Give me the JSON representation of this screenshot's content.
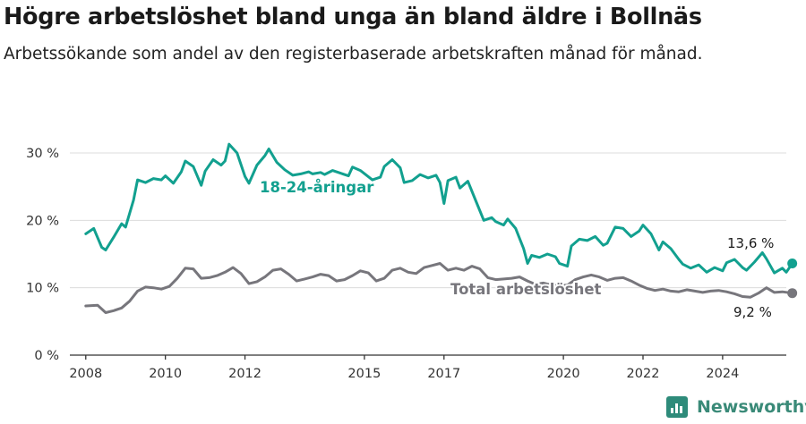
{
  "title": "Högre arbetslöshet bland unga än bland äldre i Bollnäs",
  "subtitle": "Arbetssökande som andel av den registerbaserade arbetskraften månad för månad.",
  "brand": "Newsworthy",
  "colors": {
    "youth": "#12a08f",
    "total": "#77767c",
    "grid": "#dcdcdc",
    "axis": "#333333",
    "brand": "#3a8a78"
  },
  "chart_data": {
    "type": "line",
    "title": "Högre arbetslöshet bland unga än bland äldre i Bollnäs",
    "subtitle": "Arbetssökande som andel av den registerbaserade arbetskraften månad för månad.",
    "x_ticks": [
      2008,
      2010,
      2012,
      2015,
      2017,
      2020,
      2022,
      2024
    ],
    "xlim": [
      2007.6,
      2025.6
    ],
    "ylim": [
      0,
      30
    ],
    "y_ticks": [
      0,
      10,
      20,
      30
    ],
    "y_tick_labels": [
      "0 %",
      "10 %",
      "20 %",
      "30 %"
    ],
    "grid": true,
    "series": [
      {
        "name": "18-24-åringar",
        "label": "18-24-åringar",
        "end_label": "13,6 %",
        "color": "#12a08f",
        "points": [
          [
            2008.0,
            18.0
          ],
          [
            2008.2,
            18.8
          ],
          [
            2008.4,
            16.0
          ],
          [
            2008.5,
            15.6
          ],
          [
            2008.7,
            17.5
          ],
          [
            2008.9,
            19.5
          ],
          [
            2009.0,
            19.0
          ],
          [
            2009.2,
            23.0
          ],
          [
            2009.3,
            26.0
          ],
          [
            2009.5,
            25.6
          ],
          [
            2009.7,
            26.2
          ],
          [
            2009.9,
            26.0
          ],
          [
            2010.0,
            26.6
          ],
          [
            2010.2,
            25.5
          ],
          [
            2010.4,
            27.2
          ],
          [
            2010.5,
            28.8
          ],
          [
            2010.7,
            28.0
          ],
          [
            2010.9,
            25.2
          ],
          [
            2011.0,
            27.3
          ],
          [
            2011.2,
            29.0
          ],
          [
            2011.4,
            28.2
          ],
          [
            2011.5,
            28.8
          ],
          [
            2011.6,
            31.3
          ],
          [
            2011.8,
            30.0
          ],
          [
            2012.0,
            26.5
          ],
          [
            2012.1,
            25.5
          ],
          [
            2012.3,
            28.2
          ],
          [
            2012.5,
            29.6
          ],
          [
            2012.6,
            30.6
          ],
          [
            2012.8,
            28.6
          ],
          [
            2013.0,
            27.5
          ],
          [
            2013.2,
            26.7
          ],
          [
            2013.4,
            26.9
          ],
          [
            2013.6,
            27.2
          ],
          [
            2013.7,
            26.9
          ],
          [
            2013.9,
            27.1
          ],
          [
            2014.0,
            26.8
          ],
          [
            2014.2,
            27.4
          ],
          [
            2014.4,
            27.0
          ],
          [
            2014.6,
            26.6
          ],
          [
            2014.7,
            27.9
          ],
          [
            2014.9,
            27.4
          ],
          [
            2015.2,
            26.0
          ],
          [
            2015.4,
            26.4
          ],
          [
            2015.5,
            28.0
          ],
          [
            2015.7,
            29.0
          ],
          [
            2015.9,
            27.8
          ],
          [
            2016.0,
            25.6
          ],
          [
            2016.2,
            25.9
          ],
          [
            2016.4,
            26.8
          ],
          [
            2016.6,
            26.3
          ],
          [
            2016.8,
            26.7
          ],
          [
            2016.9,
            25.6
          ],
          [
            2017.0,
            22.5
          ],
          [
            2017.1,
            25.9
          ],
          [
            2017.3,
            26.4
          ],
          [
            2017.4,
            24.8
          ],
          [
            2017.6,
            25.8
          ],
          [
            2017.8,
            22.9
          ],
          [
            2018.0,
            20.0
          ],
          [
            2018.2,
            20.4
          ],
          [
            2018.3,
            19.8
          ],
          [
            2018.5,
            19.3
          ],
          [
            2018.6,
            20.2
          ],
          [
            2018.8,
            18.8
          ],
          [
            2019.0,
            15.8
          ],
          [
            2019.1,
            13.6
          ],
          [
            2019.2,
            14.8
          ],
          [
            2019.4,
            14.5
          ],
          [
            2019.6,
            15.0
          ],
          [
            2019.8,
            14.6
          ],
          [
            2019.9,
            13.6
          ],
          [
            2020.1,
            13.2
          ],
          [
            2020.2,
            16.2
          ],
          [
            2020.4,
            17.2
          ],
          [
            2020.6,
            17.0
          ],
          [
            2020.8,
            17.6
          ],
          [
            2021.0,
            16.3
          ],
          [
            2021.1,
            16.6
          ],
          [
            2021.3,
            19.0
          ],
          [
            2021.5,
            18.8
          ],
          [
            2021.7,
            17.6
          ],
          [
            2021.9,
            18.4
          ],
          [
            2022.0,
            19.3
          ],
          [
            2022.2,
            18.0
          ],
          [
            2022.4,
            15.6
          ],
          [
            2022.5,
            16.8
          ],
          [
            2022.7,
            15.8
          ],
          [
            2022.9,
            14.2
          ],
          [
            2023.0,
            13.5
          ],
          [
            2023.2,
            12.9
          ],
          [
            2023.4,
            13.4
          ],
          [
            2023.6,
            12.3
          ],
          [
            2023.8,
            13.0
          ],
          [
            2024.0,
            12.5
          ],
          [
            2024.1,
            13.7
          ],
          [
            2024.3,
            14.2
          ],
          [
            2024.5,
            13.0
          ],
          [
            2024.6,
            12.6
          ],
          [
            2024.8,
            13.8
          ],
          [
            2025.0,
            15.2
          ],
          [
            2025.1,
            14.3
          ],
          [
            2025.3,
            12.2
          ],
          [
            2025.5,
            12.9
          ],
          [
            2025.6,
            12.3
          ],
          [
            2025.75,
            13.6
          ]
        ]
      },
      {
        "name": "Total arbetslöshet",
        "label": "Total arbetslöshet",
        "end_label": "9,2 %",
        "color": "#77767c",
        "points": [
          [
            2008.0,
            7.3
          ],
          [
            2008.3,
            7.4
          ],
          [
            2008.5,
            6.3
          ],
          [
            2008.7,
            6.6
          ],
          [
            2008.9,
            7.0
          ],
          [
            2009.1,
            8.0
          ],
          [
            2009.3,
            9.5
          ],
          [
            2009.5,
            10.1
          ],
          [
            2009.7,
            10.0
          ],
          [
            2009.9,
            9.8
          ],
          [
            2010.1,
            10.2
          ],
          [
            2010.3,
            11.4
          ],
          [
            2010.5,
            12.9
          ],
          [
            2010.7,
            12.8
          ],
          [
            2010.9,
            11.4
          ],
          [
            2011.1,
            11.5
          ],
          [
            2011.3,
            11.8
          ],
          [
            2011.5,
            12.3
          ],
          [
            2011.7,
            13.0
          ],
          [
            2011.9,
            12.1
          ],
          [
            2012.1,
            10.6
          ],
          [
            2012.3,
            10.9
          ],
          [
            2012.5,
            11.6
          ],
          [
            2012.7,
            12.6
          ],
          [
            2012.9,
            12.8
          ],
          [
            2013.1,
            12.0
          ],
          [
            2013.3,
            11.0
          ],
          [
            2013.5,
            11.3
          ],
          [
            2013.7,
            11.6
          ],
          [
            2013.9,
            12.0
          ],
          [
            2014.1,
            11.8
          ],
          [
            2014.3,
            11.0
          ],
          [
            2014.5,
            11.2
          ],
          [
            2014.7,
            11.8
          ],
          [
            2014.9,
            12.5
          ],
          [
            2015.1,
            12.2
          ],
          [
            2015.3,
            11.0
          ],
          [
            2015.5,
            11.4
          ],
          [
            2015.7,
            12.6
          ],
          [
            2015.9,
            12.9
          ],
          [
            2016.1,
            12.3
          ],
          [
            2016.3,
            12.1
          ],
          [
            2016.5,
            13.0
          ],
          [
            2016.7,
            13.3
          ],
          [
            2016.9,
            13.6
          ],
          [
            2017.1,
            12.6
          ],
          [
            2017.3,
            12.9
          ],
          [
            2017.5,
            12.6
          ],
          [
            2017.7,
            13.2
          ],
          [
            2017.9,
            12.8
          ],
          [
            2018.1,
            11.5
          ],
          [
            2018.3,
            11.2
          ],
          [
            2018.5,
            11.3
          ],
          [
            2018.7,
            11.4
          ],
          [
            2018.9,
            11.6
          ],
          [
            2019.1,
            11.0
          ],
          [
            2019.3,
            10.5
          ],
          [
            2019.5,
            10.7
          ],
          [
            2019.7,
            10.4
          ],
          [
            2019.9,
            10.3
          ],
          [
            2020.1,
            10.4
          ],
          [
            2020.3,
            11.2
          ],
          [
            2020.5,
            11.6
          ],
          [
            2020.7,
            11.9
          ],
          [
            2020.9,
            11.6
          ],
          [
            2021.1,
            11.1
          ],
          [
            2021.3,
            11.4
          ],
          [
            2021.5,
            11.5
          ],
          [
            2021.7,
            11.0
          ],
          [
            2021.9,
            10.4
          ],
          [
            2022.1,
            9.9
          ],
          [
            2022.3,
            9.6
          ],
          [
            2022.5,
            9.8
          ],
          [
            2022.7,
            9.5
          ],
          [
            2022.9,
            9.4
          ],
          [
            2023.1,
            9.7
          ],
          [
            2023.3,
            9.5
          ],
          [
            2023.5,
            9.3
          ],
          [
            2023.7,
            9.5
          ],
          [
            2023.9,
            9.6
          ],
          [
            2024.1,
            9.4
          ],
          [
            2024.3,
            9.1
          ],
          [
            2024.5,
            8.7
          ],
          [
            2024.7,
            8.6
          ],
          [
            2024.9,
            9.2
          ],
          [
            2025.1,
            10.0
          ],
          [
            2025.3,
            9.3
          ],
          [
            2025.5,
            9.4
          ],
          [
            2025.75,
            9.2
          ]
        ]
      }
    ]
  }
}
